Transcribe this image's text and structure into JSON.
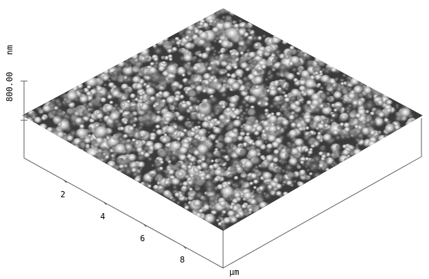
{
  "z_axis": {
    "label": "800.00",
    "unit": "nm"
  },
  "x_axis": {
    "ticks": [
      "2",
      "4",
      "6",
      "8"
    ],
    "unit": "µm"
  }
}
